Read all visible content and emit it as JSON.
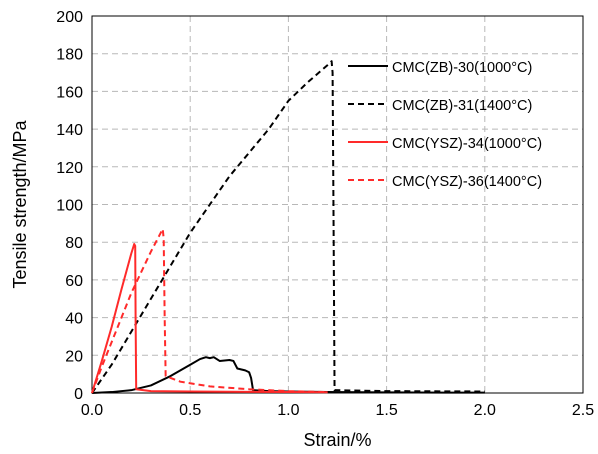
{
  "chart_data": {
    "type": "line",
    "xlabel": "Strain/%",
    "ylabel": "Tensile strength/MPa",
    "xlim": [
      0,
      2.5
    ],
    "ylim": [
      0,
      200
    ],
    "xticks": [
      "0.0",
      "0.5",
      "1.0",
      "1.5",
      "2.0",
      "2.5"
    ],
    "yticks": [
      "0",
      "20",
      "40",
      "60",
      "80",
      "100",
      "120",
      "140",
      "160",
      "180",
      "200"
    ],
    "grid": true,
    "legend_position": "top-right",
    "series": [
      {
        "name": "CMC(ZB)-30(1000°C)",
        "color": "#000000",
        "dash": "solid",
        "points": [
          [
            0.0,
            0
          ],
          [
            0.1,
            0.5
          ],
          [
            0.2,
            1.5
          ],
          [
            0.3,
            4
          ],
          [
            0.4,
            9
          ],
          [
            0.5,
            15
          ],
          [
            0.55,
            18
          ],
          [
            0.58,
            19
          ],
          [
            0.6,
            18.5
          ],
          [
            0.62,
            19
          ],
          [
            0.65,
            17
          ],
          [
            0.7,
            17.5
          ],
          [
            0.72,
            17
          ],
          [
            0.74,
            13
          ],
          [
            0.78,
            12
          ],
          [
            0.8,
            11
          ],
          [
            0.81,
            8
          ],
          [
            0.82,
            1.5
          ],
          [
            0.9,
            1
          ],
          [
            1.0,
            0.8
          ],
          [
            1.2,
            0.5
          ],
          [
            1.5,
            0.3
          ],
          [
            1.8,
            0.2
          ],
          [
            2.0,
            0.2
          ]
        ]
      },
      {
        "name": "CMC(ZB)-31(1400°C)",
        "color": "#000000",
        "dash": "dashed",
        "points": [
          [
            0.0,
            0
          ],
          [
            0.1,
            15
          ],
          [
            0.3,
            50
          ],
          [
            0.5,
            85
          ],
          [
            0.7,
            115
          ],
          [
            0.9,
            140
          ],
          [
            1.0,
            155
          ],
          [
            1.1,
            165
          ],
          [
            1.2,
            174
          ],
          [
            1.22,
            176
          ],
          [
            1.225,
            170
          ],
          [
            1.23,
            90
          ],
          [
            1.235,
            1.5
          ],
          [
            1.5,
            1
          ],
          [
            2.0,
            0.8
          ]
        ]
      },
      {
        "name": "CMC(YSZ)-34(1000°C)",
        "color": "#ff2a2a",
        "dash": "solid",
        "points": [
          [
            0.0,
            0
          ],
          [
            0.05,
            17
          ],
          [
            0.1,
            35
          ],
          [
            0.15,
            55
          ],
          [
            0.2,
            74
          ],
          [
            0.215,
            79
          ],
          [
            0.22,
            78
          ],
          [
            0.222,
            40
          ],
          [
            0.225,
            2
          ],
          [
            0.3,
            1
          ],
          [
            0.5,
            0.8
          ],
          [
            0.8,
            0.6
          ],
          [
            1.0,
            0.5
          ],
          [
            1.2,
            0.4
          ]
        ]
      },
      {
        "name": "CMC(YSZ)-36(1400°C)",
        "color": "#ff2a2a",
        "dash": "dashed",
        "points": [
          [
            0.0,
            0
          ],
          [
            0.05,
            14
          ],
          [
            0.1,
            27
          ],
          [
            0.15,
            40
          ],
          [
            0.2,
            53
          ],
          [
            0.25,
            64
          ],
          [
            0.3,
            75
          ],
          [
            0.34,
            83
          ],
          [
            0.36,
            87
          ],
          [
            0.365,
            82
          ],
          [
            0.37,
            40
          ],
          [
            0.375,
            9
          ],
          [
            0.45,
            6
          ],
          [
            0.6,
            3.5
          ],
          [
            0.8,
            2
          ],
          [
            1.0,
            1
          ],
          [
            1.2,
            0.5
          ]
        ]
      }
    ]
  }
}
